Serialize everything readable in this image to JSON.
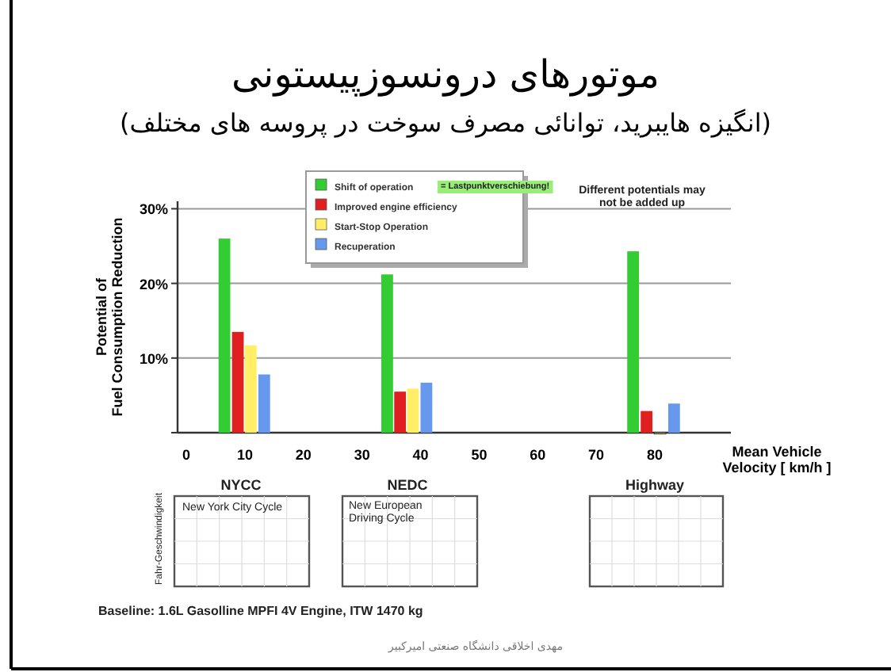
{
  "chart_data": {
    "type": "bar",
    "title": "موتورهای درونسوزپیستونی",
    "subtitle": "(انگیزه هایبرید، توانائی مصرف سوخت در پروسه های مختلف)",
    "ylabel": "Potential of\nFuel Consumption Reduction",
    "xlabel": "Mean Vehicle\nVelocity [ km/h ]",
    "series": [
      {
        "name": "Shift of operation",
        "color": "#33cc33",
        "x": [
          6.5,
          34.3,
          76.3
        ],
        "values": [
          26,
          21.2,
          24.3
        ]
      },
      {
        "name": "Improved engine efficiency",
        "color": "#e02020",
        "x": [
          8.8,
          36.5,
          78.6
        ],
        "values": [
          13.5,
          5.5,
          2.9
        ]
      },
      {
        "name": "Start-Stop Operation",
        "color": "#ffee66",
        "x": [
          11,
          38.7,
          80.9
        ],
        "values": [
          11.7,
          5.9,
          0
        ]
      },
      {
        "name": "Recuperation",
        "color": "#6699ee",
        "x": [
          13.3,
          41,
          83.3
        ],
        "values": [
          7.8,
          6.7,
          3.9
        ]
      }
    ],
    "xlim": [
      -1.5,
      93
    ],
    "ylim": [
      0,
      31
    ],
    "xticks": [
      0,
      10,
      20,
      30,
      40,
      50,
      60,
      70,
      80
    ],
    "yticks": [
      {
        "value": 0,
        "label": null
      },
      {
        "value": 10,
        "label": "10%"
      },
      {
        "value": 20,
        "label": "20%"
      },
      {
        "value": 30,
        "label": "30%"
      }
    ],
    "grid": "y",
    "legend": "top",
    "annotations": [
      "= Lastpunktverschiebung!",
      "Different potentials may\nnot be added up",
      "NYCC",
      "New York City Cycle",
      "NEDC",
      "New European\nDriving Cycle",
      "Highway",
      "Fahr-Geschwindigkeit",
      "Baseline: 1.6L Gasolline MPFI 4V Engine, ITW 1470 kg",
      "مهدی اخلاقی دانشگاه صنعتی امیرکبیر"
    ]
  }
}
